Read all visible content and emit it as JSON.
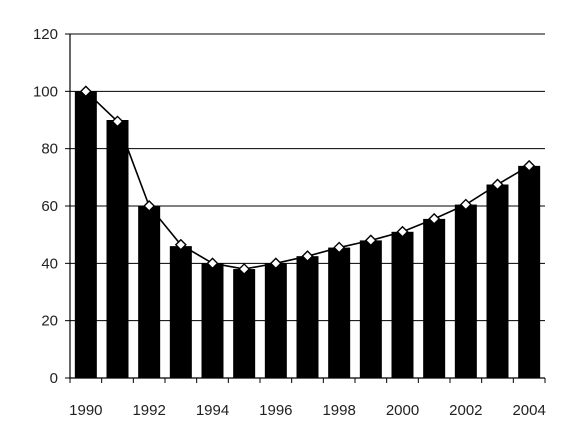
{
  "chart_data": {
    "type": "bar",
    "categories": [
      "1990",
      "1991",
      "1992",
      "1993",
      "1994",
      "1995",
      "1996",
      "1997",
      "1998",
      "1999",
      "2000",
      "2001",
      "2002",
      "2003",
      "2004"
    ],
    "series": [
      {
        "values": [
          100,
          90,
          60,
          46,
          40,
          38,
          40,
          42.5,
          45.5,
          48,
          51,
          55.5,
          60.5,
          67.5,
          74
        ]
      },
      {
        "values": [
          100,
          89.5,
          60,
          46.5,
          40,
          38,
          40,
          42.5,
          45.5,
          48,
          51,
          55.5,
          60.5,
          67.5,
          74
        ]
      }
    ],
    "ylim": [
      0,
      120
    ],
    "yticks": [
      "0",
      "20",
      "40",
      "60",
      "80",
      "100",
      "120"
    ],
    "xtick_labels": [
      "1990",
      "1992",
      "1994",
      "1996",
      "1998",
      "2000",
      "2002",
      "2004"
    ],
    "grid": true,
    "colors": {
      "bar": "#000000",
      "line": "#000000",
      "marker_fill": "#ffffff",
      "grid": "#000000"
    }
  }
}
